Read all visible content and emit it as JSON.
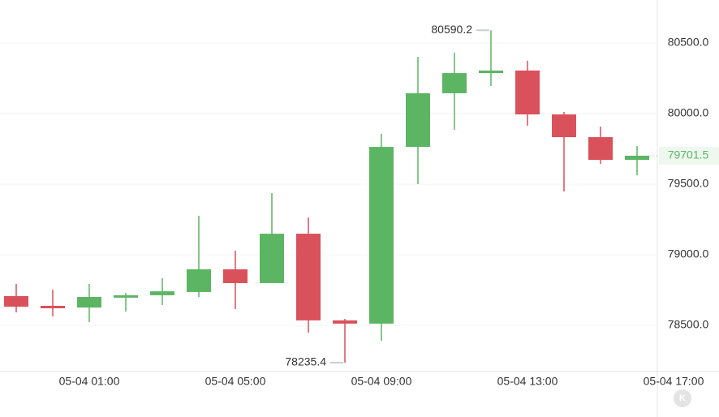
{
  "chart_data": {
    "type": "candlestick",
    "categories": [
      null,
      null,
      "05-04 01:00",
      null,
      null,
      null,
      "05-04 05:00",
      null,
      null,
      null,
      "05-04 09:00",
      null,
      null,
      null,
      "05-04 13:00",
      null,
      null,
      null,
      "05-04 17:00"
    ],
    "open": [
      78707,
      78638,
      78626,
      78696,
      78713,
      78736,
      78897,
      78799,
      79149,
      78535,
      78512,
      79764,
      80144,
      80287,
      80305,
      79994,
      79833,
      79672,
      null
    ],
    "high": [
      78793,
      78753,
      78793,
      78730,
      78833,
      79276,
      79029,
      79437,
      79264,
      78546,
      79856,
      80402,
      80431,
      80590.2,
      80374,
      80011,
      79908,
      79770,
      null
    ],
    "low": [
      78592,
      78563,
      78523,
      78598,
      78644,
      78701,
      78615,
      78799,
      78448,
      78235.4,
      78391,
      79500,
      79885,
      80195,
      79914,
      79448,
      79644,
      79563,
      null
    ],
    "close": [
      78632,
      78626,
      78701,
      78713,
      78741,
      78897,
      78799,
      79149,
      78535,
      78512,
      79764,
      80144,
      80287,
      80305,
      79994,
      79833,
      79672,
      79701.5,
      null
    ],
    "up_color": "#5cb563",
    "down_color": "#d9515a",
    "ylim": [
      78172.4,
      80804.6
    ],
    "yticks": [
      {
        "value": 78500,
        "label": "78500.0"
      },
      {
        "value": 79000,
        "label": "79000.0"
      },
      {
        "value": 79500,
        "label": "79500.0"
      },
      {
        "value": 80000,
        "label": "80000.0"
      },
      {
        "value": 80500,
        "label": "80500.0"
      }
    ],
    "grid": true,
    "logo": "K"
  }
}
